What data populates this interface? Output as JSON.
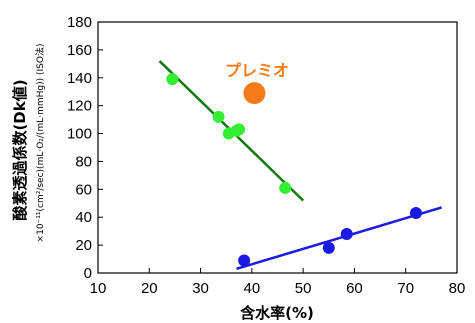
{
  "chart_data": {
    "type": "scatter",
    "title": "",
    "xlabel": "含水率(%)",
    "ylabel": "酸素透過係数(Dk値)",
    "ylabel_sub": "×10⁻¹¹(cm²/sec)(mL·O₂/(mL·mmHg)) (ISO法)",
    "xlim": [
      10,
      80
    ],
    "ylim": [
      0,
      180
    ],
    "xticks": [
      10,
      20,
      30,
      40,
      50,
      60,
      70,
      80
    ],
    "yticks": [
      0,
      20,
      40,
      60,
      80,
      100,
      120,
      140,
      160,
      180
    ],
    "grid": false,
    "series": [
      {
        "color": "#33ee33",
        "trend_color": "#117711",
        "x": [
          24.5,
          33.5,
          35.5,
          37,
          37.5,
          46.5
        ],
        "y": [
          139,
          112,
          100,
          102,
          103,
          61
        ],
        "trendline": [
          [
            22,
            152
          ],
          [
            50,
            52
          ]
        ]
      },
      {
        "color": "#1a1ae0",
        "trend_color": "#1a1ae0",
        "x": [
          38.5,
          55,
          58.5,
          72
        ],
        "y": [
          9,
          18,
          28,
          43
        ],
        "trendline": [
          [
            37,
            3
          ],
          [
            77,
            47
          ]
        ]
      },
      {
        "color": "#f57a1a",
        "x": [
          40.5
        ],
        "y": [
          129
        ],
        "marker_size": "large"
      }
    ],
    "annotations": [
      {
        "text": "プレミオ",
        "color": "#f57a1a"
      }
    ]
  }
}
